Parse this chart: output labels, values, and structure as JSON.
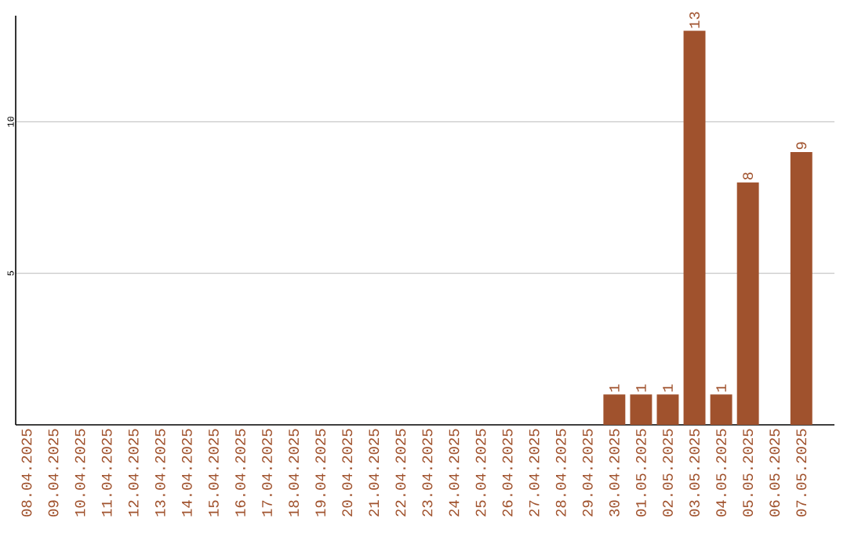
{
  "chart_data": {
    "type": "bar",
    "categories": [
      "08.04.2025",
      "09.04.2025",
      "10.04.2025",
      "11.04.2025",
      "12.04.2025",
      "13.04.2025",
      "14.04.2025",
      "15.04.2025",
      "16.04.2025",
      "17.04.2025",
      "18.04.2025",
      "19.04.2025",
      "20.04.2025",
      "21.04.2025",
      "22.04.2025",
      "23.04.2025",
      "24.04.2025",
      "25.04.2025",
      "26.04.2025",
      "27.04.2025",
      "28.04.2025",
      "29.04.2025",
      "30.04.2025",
      "01.05.2025",
      "02.05.2025",
      "03.05.2025",
      "04.05.2025",
      "05.05.2025",
      "06.05.2025",
      "07.05.2025"
    ],
    "values": [
      0,
      0,
      0,
      0,
      0,
      0,
      0,
      0,
      0,
      0,
      0,
      0,
      0,
      0,
      0,
      0,
      0,
      0,
      0,
      0,
      0,
      0,
      1,
      1,
      1,
      13,
      1,
      8,
      0,
      9
    ],
    "value_labels": [
      null,
      null,
      null,
      null,
      null,
      null,
      null,
      null,
      null,
      null,
      null,
      null,
      null,
      null,
      null,
      null,
      null,
      null,
      null,
      null,
      null,
      null,
      "1",
      "1",
      "1",
      "13",
      "1",
      "8",
      null,
      "9"
    ],
    "color": "#a0522d",
    "ylim": [
      0,
      13.5
    ],
    "yticks": [
      5,
      10
    ],
    "grid": "y"
  }
}
